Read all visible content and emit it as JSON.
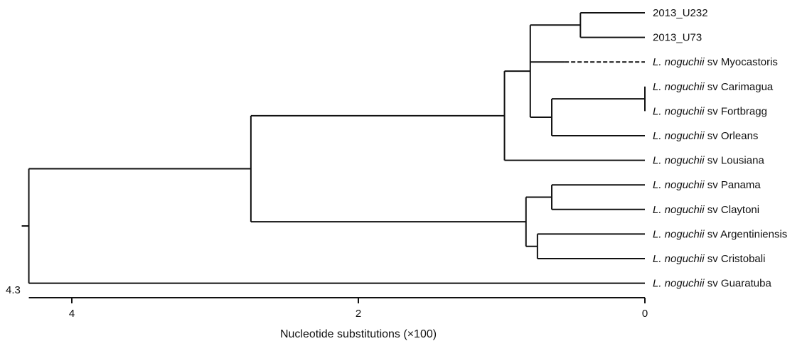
{
  "tree": {
    "leaves": [
      {
        "id": "U232",
        "italic": "",
        "plain": "2013_U232"
      },
      {
        "id": "U73",
        "italic": "",
        "plain": "2013_U73"
      },
      {
        "id": "Myocastoris",
        "italic": "L. noguchii",
        "plain": " sv Myocastoris",
        "dashed": true
      },
      {
        "id": "Carimagua",
        "italic": "L. noguchii",
        "plain": " sv Carimagua"
      },
      {
        "id": "Fortbragg",
        "italic": "L. noguchii",
        "plain": " sv Fortbragg"
      },
      {
        "id": "Orleans",
        "italic": "L. noguchii",
        "plain": " sv Orleans"
      },
      {
        "id": "Lousiana",
        "italic": "L. noguchii",
        "plain": " sv Lousiana"
      },
      {
        "id": "Panama",
        "italic": "L. noguchii",
        "plain": " sv Panama"
      },
      {
        "id": "Claytoni",
        "italic": "L. noguchii",
        "plain": " sv Claytoni"
      },
      {
        "id": "Argentiniensis",
        "italic": "L. noguchii",
        "plain": " sv Argentiniensis"
      },
      {
        "id": "Cristobali",
        "italic": "L. noguchii",
        "plain": " sv Cristobali"
      },
      {
        "id": "Guaratuba",
        "italic": "L. noguchii",
        "plain": " sv Guaratuba"
      }
    ],
    "internal_nodes": [
      {
        "id": "n1",
        "age": 0.45,
        "children": [
          "U232",
          "U73"
        ]
      },
      {
        "id": "n2",
        "age": 0.0,
        "children": [
          "Carimagua",
          "Fortbragg"
        ]
      },
      {
        "id": "n3",
        "age": 0.65,
        "children": [
          "n2",
          "Orleans"
        ]
      },
      {
        "id": "n4",
        "age": 0.8,
        "children": [
          "n1",
          "Myocastoris",
          "n3"
        ]
      },
      {
        "id": "n5",
        "age": 0.98,
        "children": [
          "n4",
          "Lousiana"
        ]
      },
      {
        "id": "n6",
        "age": 0.65,
        "children": [
          "Panama",
          "Claytoni"
        ]
      },
      {
        "id": "n7",
        "age": 0.75,
        "children": [
          "Argentiniensis",
          "Cristobali"
        ]
      },
      {
        "id": "n8",
        "age": 0.83,
        "children": [
          "n6",
          "n7"
        ]
      },
      {
        "id": "n9",
        "age": 2.75,
        "children": [
          "n5",
          "n8"
        ]
      },
      {
        "id": "root",
        "age": 4.3,
        "children": [
          "n9",
          "Guaratuba"
        ]
      }
    ]
  },
  "axis": {
    "root_label": "4.3",
    "ticks": [
      4,
      2,
      0
    ],
    "tick_labels": [
      "4",
      "2",
      "0"
    ],
    "max": 4.3,
    "title": "Nucleotide substitutions (×100)"
  }
}
